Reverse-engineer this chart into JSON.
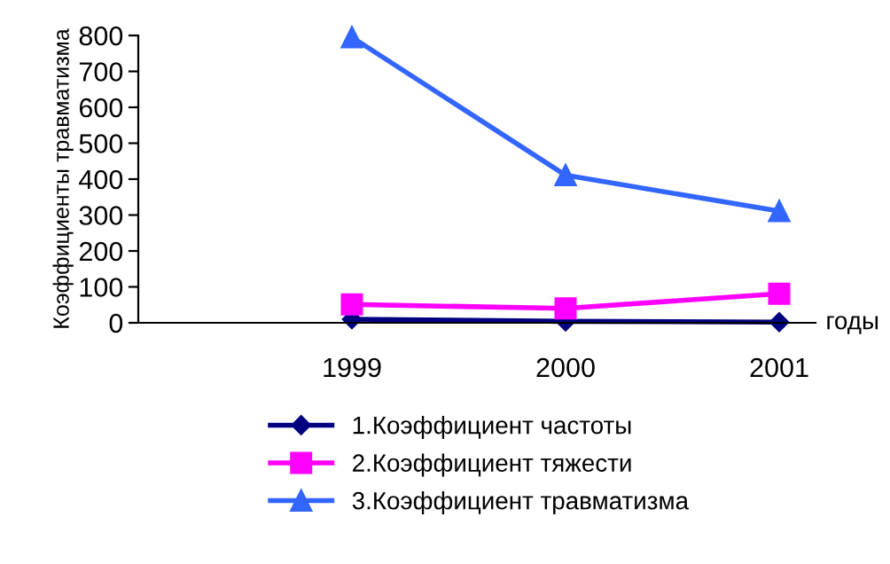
{
  "chart_data": {
    "type": "line",
    "ylabel": "Коэффициенты травматизма",
    "xlabel": "годы",
    "categories": [
      null,
      "1999",
      "2000",
      "2001"
    ],
    "series": [
      {
        "name": "1.Коэффициент частоты",
        "color": "#000080",
        "marker": "diamond",
        "values": [
          null,
          10,
          4,
          2
        ]
      },
      {
        "name": "2.Коэффициент тяжести",
        "color": "#ff00ff",
        "marker": "square",
        "values": [
          null,
          51,
          40,
          81
        ]
      },
      {
        "name": "3.Коэффициент травматизма",
        "color": "#3366ff",
        "marker": "triangle",
        "values": [
          null,
          795,
          411,
          311
        ]
      }
    ],
    "ylim": [
      0,
      800
    ],
    "yticks": [
      0,
      100,
      200,
      300,
      400,
      500,
      600,
      700,
      800
    ],
    "grid": false,
    "legend": "bottom"
  }
}
